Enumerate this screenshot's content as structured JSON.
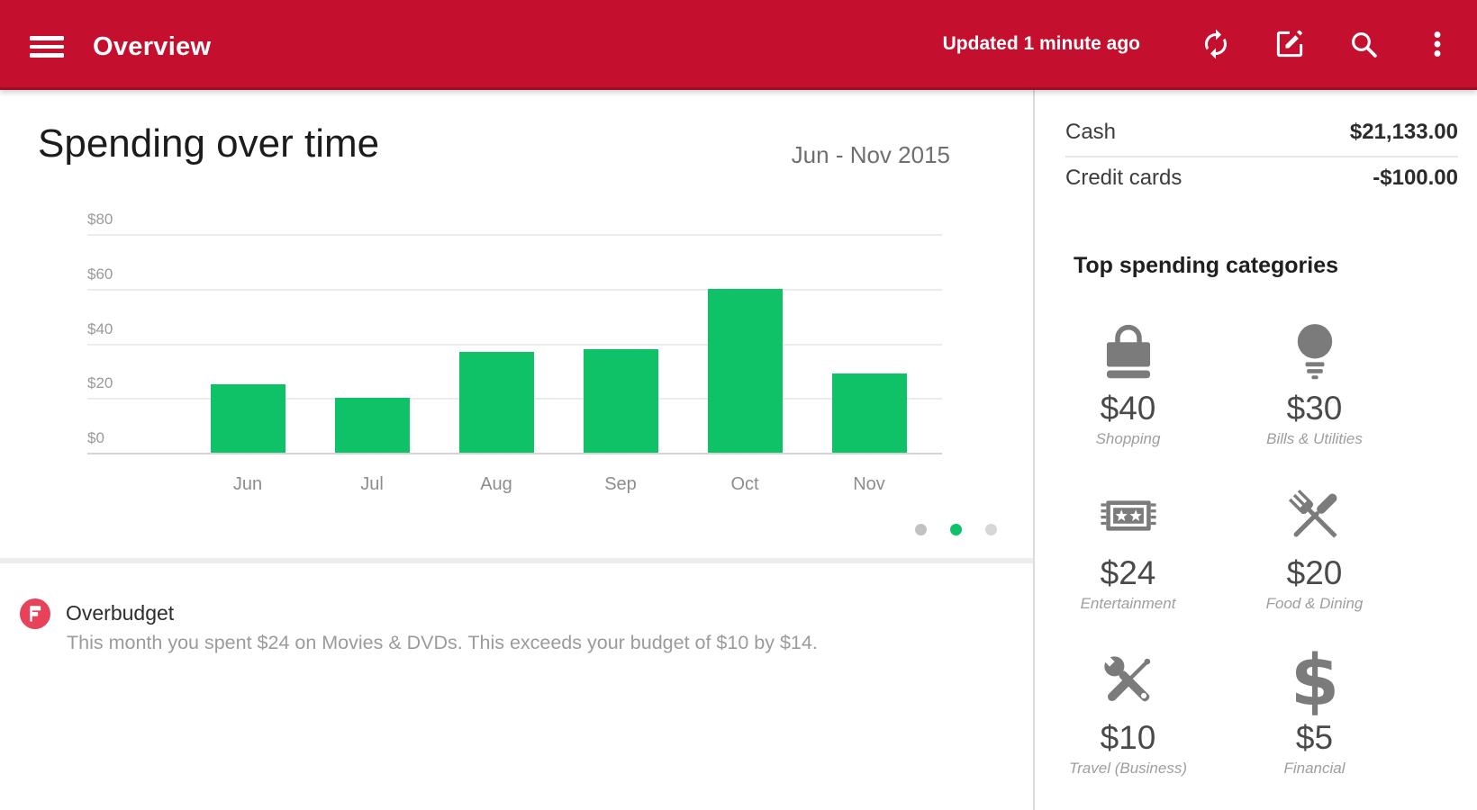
{
  "appbar": {
    "title": "Overview",
    "updated": "Updated 1 minute ago",
    "icons": [
      "menu-icon",
      "refresh-icon",
      "edit-icon",
      "search-icon",
      "more-vert-icon"
    ]
  },
  "chart_card": {
    "title": "Spending over time",
    "date_range": "Jun - Nov 2015"
  },
  "chart_data": {
    "type": "bar",
    "title": "Spending over time",
    "categories": [
      "Jun",
      "Jul",
      "Aug",
      "Sep",
      "Oct",
      "Nov"
    ],
    "values": [
      25,
      20,
      37,
      38,
      60,
      29
    ],
    "currency": "$",
    "yticks": [
      0,
      20,
      40,
      60,
      80
    ],
    "ylim": [
      0,
      80
    ],
    "grid": true,
    "bar_color": "#0FC268"
  },
  "pagination": {
    "count": 3,
    "active_index": 1
  },
  "alert": {
    "icon": "flag-icon",
    "icon_color": "#E8415A",
    "title": "Overbudget",
    "message": "This month you spent $24 on Movies & DVDs. This exceeds your budget of $10 by $14."
  },
  "sidebar": {
    "accounts": [
      {
        "label": "Cash",
        "value": "$21,133.00"
      },
      {
        "label": "Credit cards",
        "value": "-$100.00"
      }
    ],
    "top_categories_title": "Top spending categories",
    "categories": [
      {
        "amount": "$40",
        "label": "Shopping",
        "icon": "shopping-bag-icon"
      },
      {
        "amount": "$30",
        "label": "Bills & Utilities",
        "icon": "light-bulb-icon"
      },
      {
        "amount": "$24",
        "label": "Entertainment",
        "icon": "ticket-icon"
      },
      {
        "amount": "$20",
        "label": "Food & Dining",
        "icon": "fork-knife-icon"
      },
      {
        "amount": "$10",
        "label": "Travel (Business)",
        "icon": "tools-icon"
      },
      {
        "amount": "$5",
        "label": "Financial",
        "icon": "dollar-icon"
      }
    ]
  },
  "colors": {
    "appbar_red": "#C50F2E",
    "accent_green": "#0FC268",
    "icon_gray": "#7b7b7b",
    "divider": "#dcdcdc"
  }
}
